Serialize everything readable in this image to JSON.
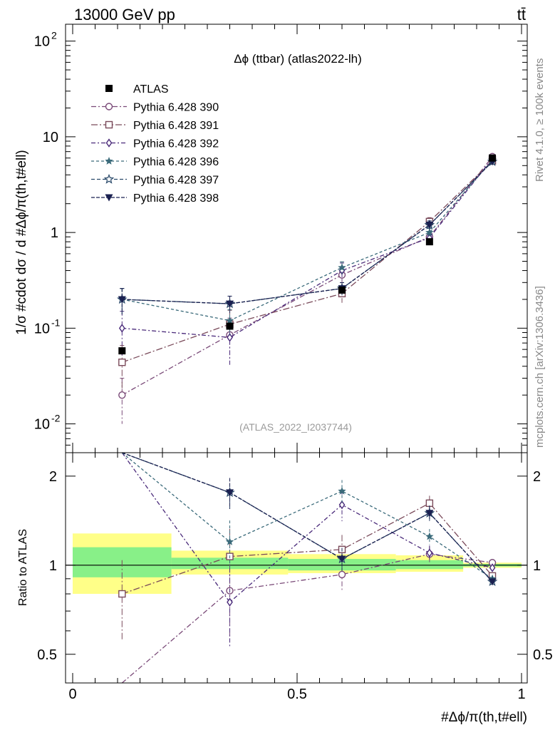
{
  "header": {
    "energy_label": "13000 GeV pp",
    "process_label": "tt̄",
    "side_label_top": "Rivet 4.1.0, ≥ 100k events",
    "side_label_bottom": "mcplots.cern.ch [arXiv:1306.3436]"
  },
  "chart_data": {
    "type": "line",
    "title": "Δϕ (ttbar) (atlas2022-lh)",
    "watermark": "(ATLAS_2022_I2037744)",
    "xlabel": "#Δϕ/π(th,t#ell)",
    "ylabel": "1/σ #cdot dσ / d #Δϕ/π(th,t#ell)",
    "ratio_ylabel": "Ratio to ATLAS",
    "xlim": [
      0,
      1
    ],
    "ylim": [
      0.005,
      150
    ],
    "ratio_ylim": [
      0.4,
      2.4
    ],
    "yscale": "log",
    "x_ticks": [
      {
        "value": 0,
        "label": "0"
      },
      {
        "value": 0.5,
        "label": "0.5"
      },
      {
        "value": 1,
        "label": "1"
      }
    ],
    "y_ticks": [
      {
        "value": 0.01,
        "label": "10",
        "exp": "-2"
      },
      {
        "value": 0.1,
        "label": "10",
        "exp": "-1"
      },
      {
        "value": 1,
        "label": "1",
        "exp": ""
      },
      {
        "value": 10,
        "label": "10",
        "exp": ""
      },
      {
        "value": 100,
        "label": "10",
        "exp": "2"
      }
    ],
    "ratio_ticks": [
      {
        "value": 0.5,
        "label": "0.5"
      },
      {
        "value": 1,
        "label": "1"
      },
      {
        "value": 2,
        "label": "2"
      }
    ],
    "bin_edges": [
      0,
      0.22,
      0.48,
      0.72,
      0.87,
      1.0
    ],
    "x": [
      0.11,
      0.35,
      0.6,
      0.795,
      0.935
    ],
    "data": {
      "name": "ATLAS",
      "values": [
        0.058,
        0.105,
        0.25,
        0.8,
        6.0
      ],
      "band_inner": [
        [
          0.91,
          1.15
        ],
        [
          0.97,
          1.06
        ],
        [
          0.96,
          1.05
        ],
        [
          0.97,
          1.04
        ],
        [
          0.99,
          1.01
        ]
      ],
      "band_outer": [
        [
          0.8,
          1.28
        ],
        [
          0.93,
          1.12
        ],
        [
          0.94,
          1.09
        ],
        [
          0.95,
          1.08
        ],
        [
          0.98,
          1.02
        ]
      ]
    },
    "series": [
      {
        "name": "Pythia 6.428 390",
        "color": "#7a4a78",
        "marker": "circle-open",
        "dash": "7,3,2,3",
        "values": [
          0.02,
          0.085,
          0.36,
          0.9,
          6.2
        ],
        "errors": [
          0.5,
          0.5,
          0.2,
          0.1,
          0.03
        ],
        "ratio": [
          0.3,
          0.82,
          0.93,
          1.09,
          1.02
        ]
      },
      {
        "name": "Pythia 6.428 391",
        "color": "#7a4a5a",
        "marker": "square-open",
        "dash": "9,3,2,3",
        "values": [
          0.044,
          0.11,
          0.23,
          1.3,
          5.6
        ],
        "errors": [
          0.5,
          0.4,
          0.2,
          0.1,
          0.03
        ],
        "ratio": [
          0.8,
          1.07,
          1.13,
          1.62,
          0.92
        ]
      },
      {
        "name": "Pythia 6.428 392",
        "color": "#4a2a7a",
        "marker": "diamond-open",
        "dash": "6,3,2,3",
        "values": [
          0.1,
          0.08,
          0.4,
          0.88,
          5.9
        ],
        "errors": [
          0.5,
          0.5,
          0.2,
          0.1,
          0.03
        ],
        "ratio": [
          3.5,
          0.75,
          1.6,
          1.1,
          0.98
        ]
      },
      {
        "name": "Pythia 6.428 396",
        "color": "#3a6a7a",
        "marker": "star-filled",
        "dash": "4,3",
        "values": [
          0.2,
          0.12,
          0.43,
          1.0,
          5.7
        ],
        "errors": [
          0.3,
          0.3,
          0.15,
          0.1,
          0.03
        ],
        "ratio": [
          3.5,
          1.2,
          1.78,
          1.25,
          0.9
        ]
      },
      {
        "name": "Pythia 6.428 397",
        "color": "#2a4a6a",
        "marker": "star-open",
        "dash": "5,3",
        "values": [
          0.2,
          0.18,
          0.26,
          1.2,
          5.5
        ],
        "errors": [
          0.3,
          0.2,
          0.15,
          0.1,
          0.03
        ],
        "ratio": [
          3.5,
          1.76,
          1.05,
          1.5,
          0.88
        ]
      },
      {
        "name": "Pythia 6.428 398",
        "color": "#1a2050",
        "marker": "triangle-down",
        "dash": "5,2",
        "values": [
          0.2,
          0.18,
          0.26,
          1.2,
          5.5
        ],
        "errors": [
          0.3,
          0.2,
          0.15,
          0.1,
          0.03
        ],
        "ratio": [
          3.5,
          1.76,
          1.05,
          1.5,
          0.88
        ]
      }
    ]
  }
}
